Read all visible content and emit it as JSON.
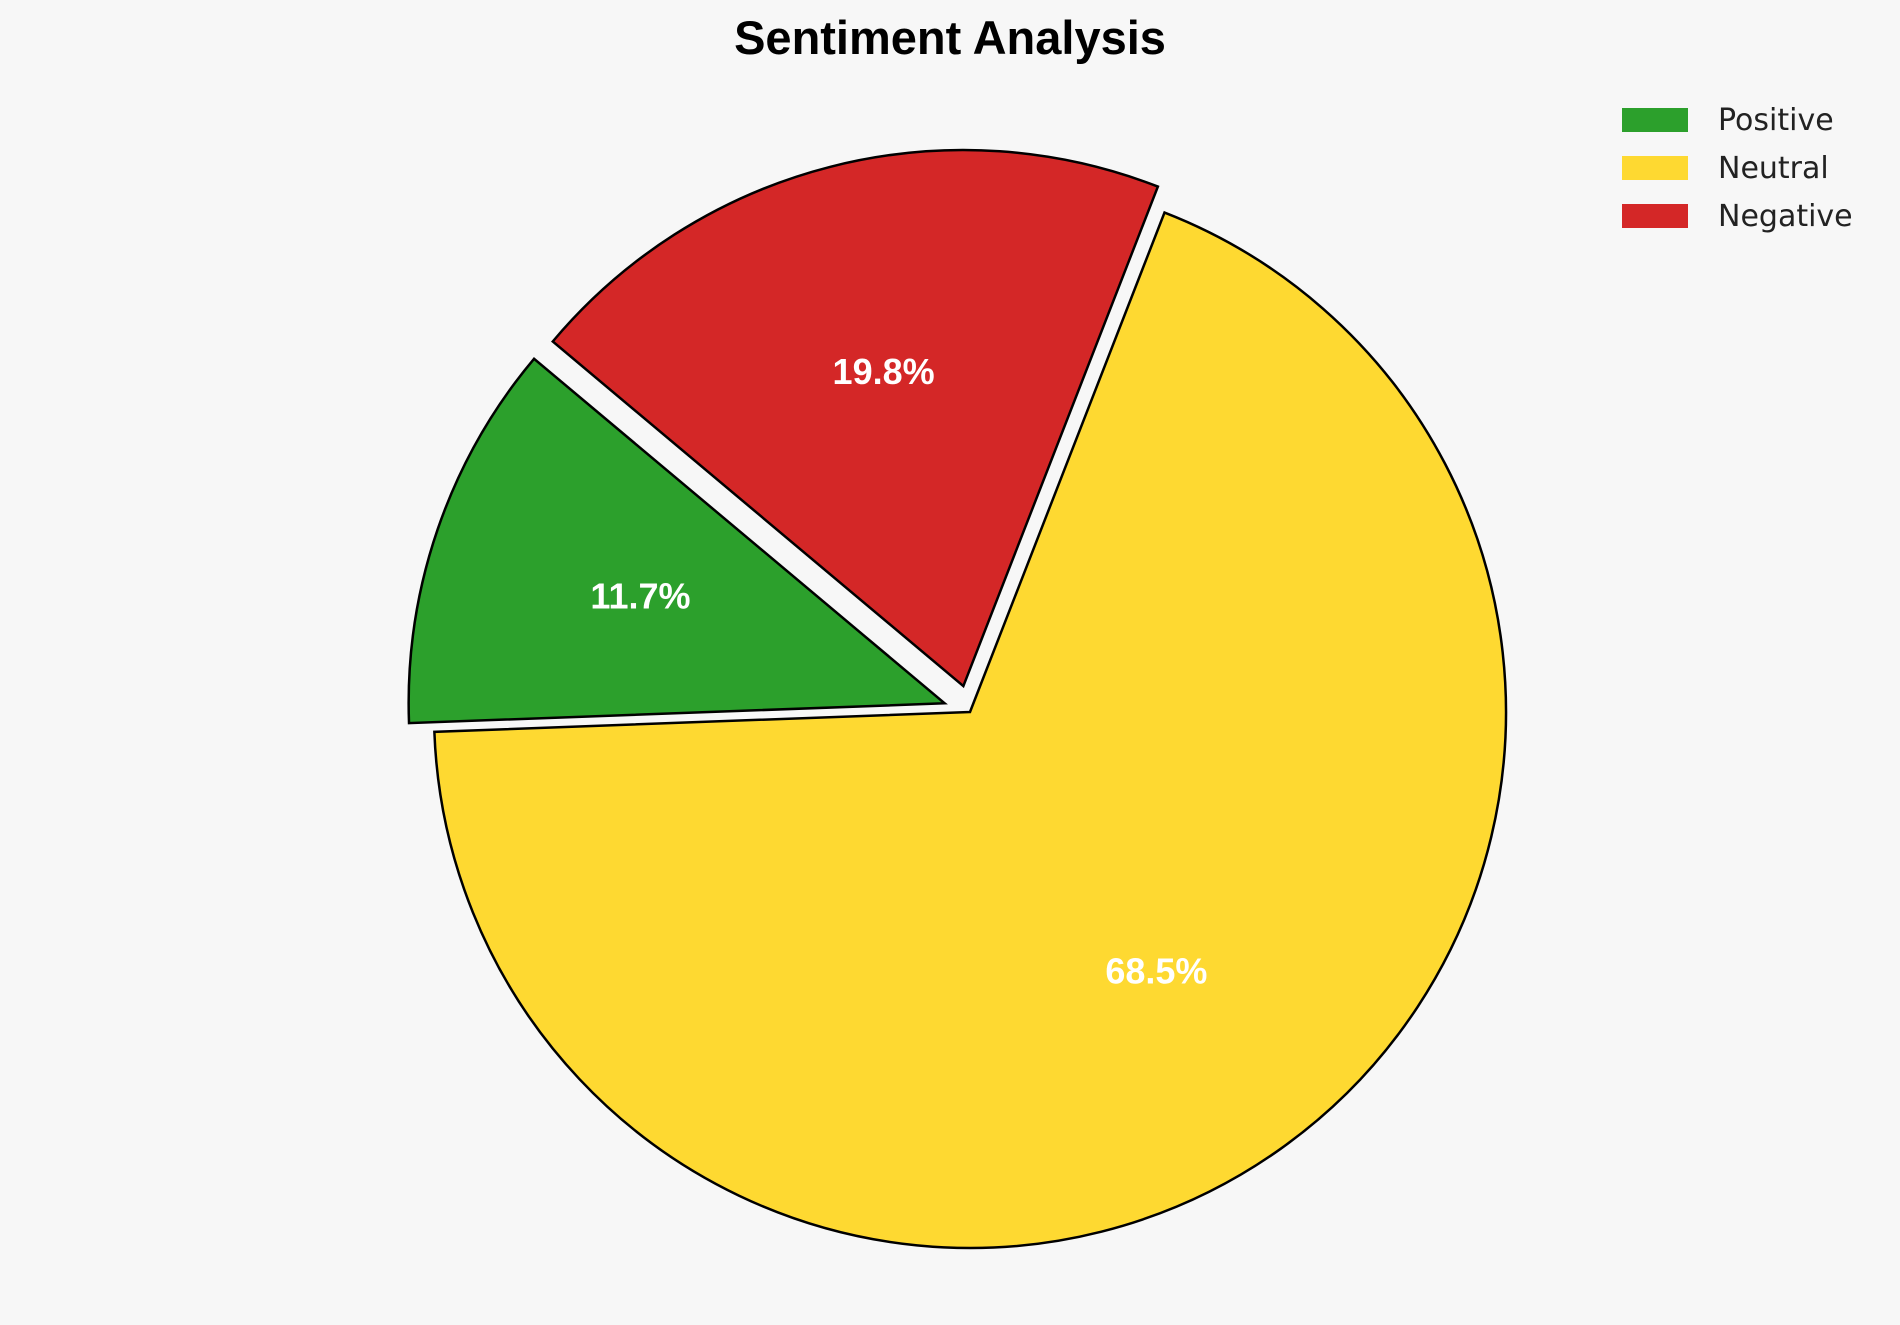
{
  "chart_data": {
    "type": "pie",
    "title": "Sentiment Analysis",
    "categories": [
      "Positive",
      "Neutral",
      "Negative"
    ],
    "values": [
      11.7,
      68.5,
      19.8
    ],
    "labels": [
      "11.7%",
      "68.5%",
      "19.8%"
    ],
    "colors": [
      "#2ca02c",
      "#fed931",
      "#d42727"
    ],
    "explode": [
      0.05,
      0.0,
      0.05
    ],
    "start_angle_deg": 140,
    "legend_position": "top-right",
    "edge_color": "#000000"
  }
}
